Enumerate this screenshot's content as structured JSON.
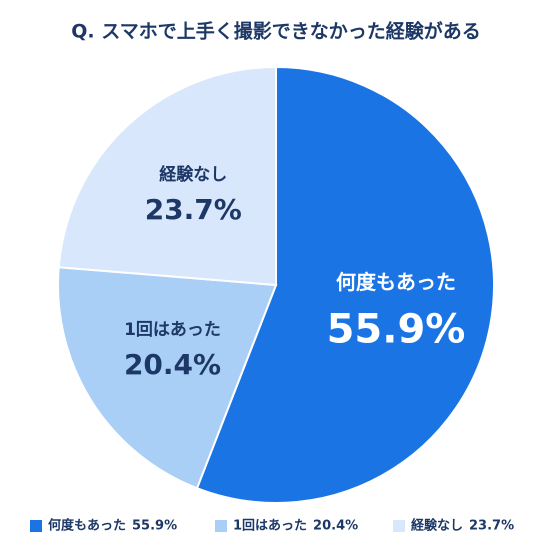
{
  "chart_data": {
    "type": "pie",
    "title": "Q. スマホで上手く撮影できなかった経験がある",
    "categories": [
      "何度もあった",
      "1回はあった",
      "経験なし"
    ],
    "values": [
      55.9,
      20.4,
      23.7
    ],
    "value_labels": [
      "55.9%",
      "20.4%",
      "23.7%"
    ],
    "colors": [
      "#1b74e4",
      "#a9cff6",
      "#d8e7fb"
    ],
    "label_colors": [
      "#ffffff",
      "#1d3866",
      "#1d3866"
    ],
    "legend": "bottom"
  }
}
